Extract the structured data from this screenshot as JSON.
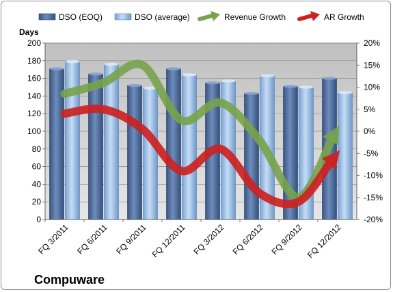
{
  "chart_data": {
    "type": "bar",
    "title": "Compuware",
    "ylabel": "Days",
    "categories": [
      "FQ 3/2011",
      "FQ 6/2011",
      "FQ 9/2011",
      "FQ 12/2011",
      "FQ 3/2012",
      "FQ 6/2012",
      "FQ 9/2012",
      "FQ 12/2012"
    ],
    "ylim": [
      0,
      200
    ],
    "yticks": [
      "0",
      "20",
      "40",
      "60",
      "80",
      "100",
      "120",
      "140",
      "160",
      "180",
      "200"
    ],
    "y2lim": [
      -20,
      20
    ],
    "y2ticks": [
      "-20%",
      "-15%",
      "-10%",
      "-5%",
      "0%",
      "5%",
      "10%",
      "15%",
      "20%"
    ],
    "series": [
      {
        "name": "DSO (EOQ)",
        "type": "bar",
        "axis": "left",
        "color": "#4f6fa0",
        "values": [
          171,
          165,
          152,
          171,
          155,
          143,
          151,
          160
        ]
      },
      {
        "name": "DSO (average)",
        "type": "bar",
        "axis": "right-side bar",
        "color": "#9cc0e8",
        "values": [
          179,
          176,
          149,
          164,
          157,
          163,
          150,
          144
        ]
      },
      {
        "name": "Revenue Growth",
        "type": "arrow-line",
        "axis": "right",
        "color": "#77a34a",
        "values": [
          8.5,
          11,
          15,
          2.5,
          6.5,
          -2,
          -15,
          0.5
        ]
      },
      {
        "name": "AR Growth",
        "type": "arrow-line",
        "axis": "right",
        "color": "#cc2222",
        "values": [
          4,
          5,
          0.5,
          -9,
          -4,
          -14,
          -16,
          -5
        ]
      }
    ],
    "grid": true,
    "legend": "top"
  }
}
